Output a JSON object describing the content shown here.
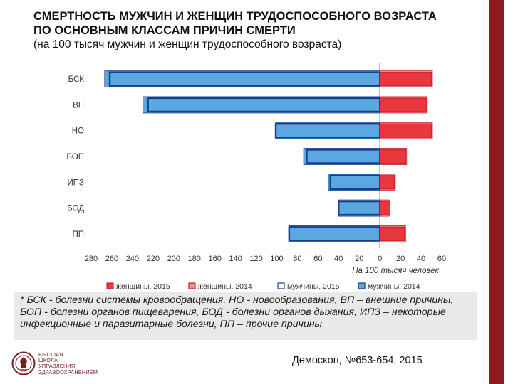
{
  "title": {
    "line1": "СМЕРТНОСТЬ МУЖЧИН И ЖЕНЩИН ТРУДОСПОСОБНОГО ВОЗРАСТА",
    "line2": "ПО ОСНОВНЫМ КЛАССАМ ПРИЧИН СМЕРТИ",
    "line3": "(на 100 тысяч мужчин и женщин трудоспособного возраста)"
  },
  "chart_data": {
    "type": "bar",
    "orientation": "horizontal",
    "categories": [
      "БСК",
      "ВП",
      "НО",
      "БОП",
      "ИПЗ",
      "БОД",
      "ПП"
    ],
    "series": [
      {
        "name": "женщины, 2015",
        "color": "#e8383d",
        "values": [
          50,
          45,
          50,
          25,
          14,
          9,
          24
        ]
      },
      {
        "name": "женщины, 2014",
        "color": "#f08a8c",
        "values": [
          51,
          46,
          51,
          26,
          15,
          9,
          25
        ]
      },
      {
        "name": "мужчины, 2015",
        "color": "#1a3c8c",
        "values": [
          -262,
          -225,
          -101,
          -71,
          -48,
          -40,
          -88
        ]
      },
      {
        "name": "мужчины, 2014",
        "color": "#5aa8e0",
        "values": [
          -267,
          -230,
          -101,
          -74,
          -50,
          -40,
          -88
        ]
      }
    ],
    "xlabel": "На 100 тысяч человек",
    "xticks": [
      "280",
      "260",
      "240",
      "220",
      "200",
      "180",
      "160",
      "140",
      "120",
      "100",
      "80",
      "60",
      "40",
      "20",
      "0",
      "20",
      "40",
      "60"
    ],
    "xlim": [
      -280,
      60
    ],
    "grid": false,
    "legend_position": "bottom"
  },
  "footnote": {
    "line1": "* БСК - болезни системы кровообращения, НО - новообразования, ВП – внешние причины,",
    "line2": "БОП - болезни органов пищеварения, БОД - болезни органов дыхания, ИПЗ – некоторые",
    "line3": "инфекционные и паразитарные болезни, ПП – прочие причины"
  },
  "logo": {
    "lines": [
      "ВЫСШАЯ",
      "ШКОЛА",
      "УПРАВЛЕНИЯ",
      "ЗДРАВООХРАНЕНИЕМ"
    ],
    "colors": {
      "brand": "#7a1c22"
    }
  },
  "source": "Демоскоп, №653-654, 2015",
  "colors": {
    "band": "#8e1b22",
    "footnote_bg": "#e9e9e9"
  }
}
